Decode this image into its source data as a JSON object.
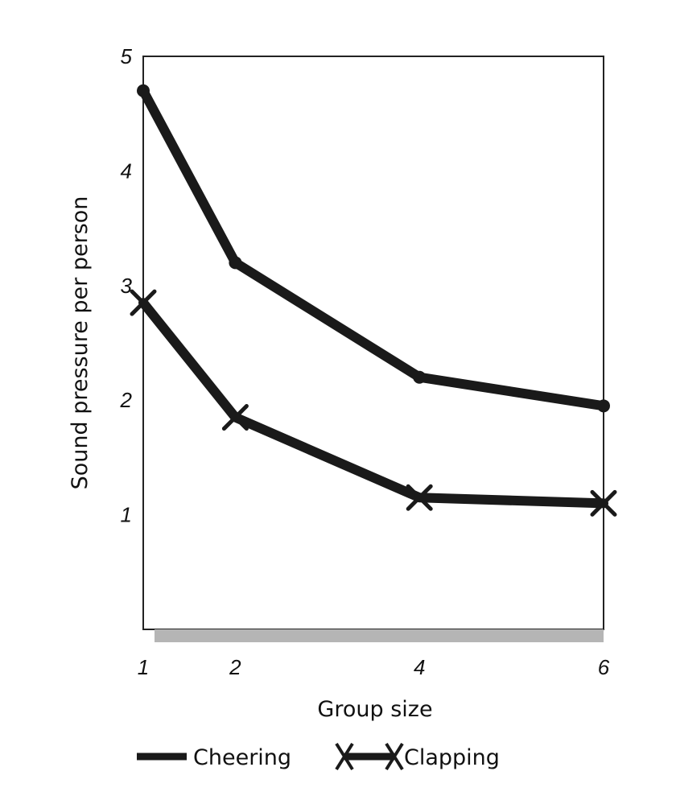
{
  "chart_data": {
    "type": "line",
    "x": [
      1,
      2,
      4,
      6
    ],
    "x_ticks": [
      "1",
      "2",
      "4",
      "6"
    ],
    "y_ticks": [
      "1",
      "2",
      "3",
      "4",
      "5"
    ],
    "xlabel": "Group size",
    "ylabel": "Sound pressure per person",
    "xlim": [
      1,
      6
    ],
    "ylim": [
      0,
      5
    ],
    "grid": false,
    "legend": "bottom",
    "series": [
      {
        "name": "Cheering",
        "values": [
          4.7,
          3.2,
          2.2,
          1.95
        ],
        "marker": "none",
        "color": "#1a1a1a"
      },
      {
        "name": "Clapping",
        "values": [
          2.85,
          1.85,
          1.15,
          1.1
        ],
        "marker": "x",
        "color": "#1a1a1a"
      }
    ]
  }
}
